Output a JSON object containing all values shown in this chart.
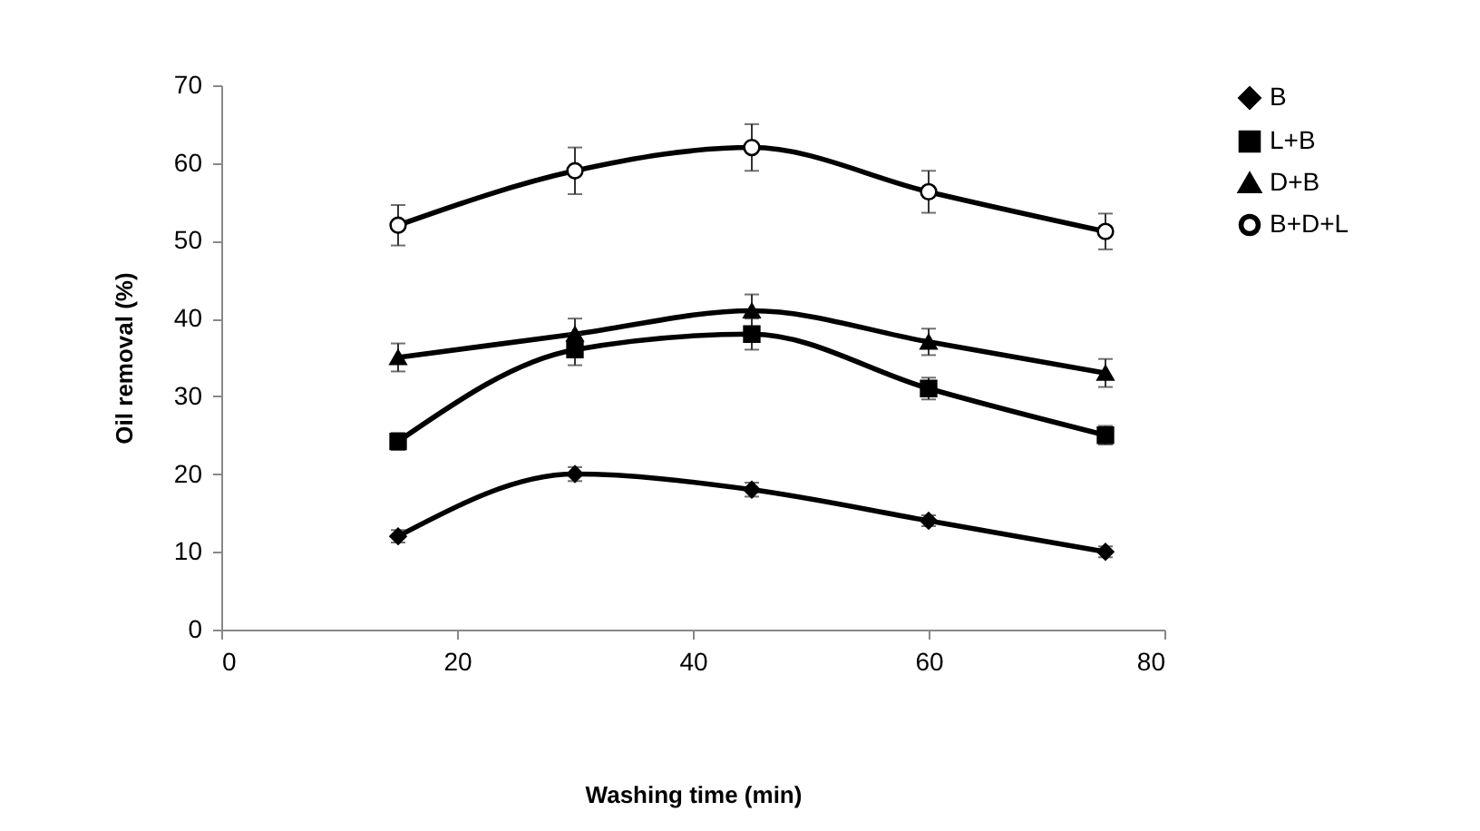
{
  "chart_data": {
    "type": "line",
    "xlabel": "Washing time (min)",
    "ylabel": "Oil removal (%)",
    "x": [
      15,
      30,
      45,
      60,
      75
    ],
    "xlim": [
      0,
      80
    ],
    "xticks": [
      0,
      20,
      40,
      60,
      80
    ],
    "ylim": [
      0,
      70
    ],
    "yticks": [
      0,
      10,
      20,
      30,
      40,
      50,
      60,
      70
    ],
    "grid": false,
    "legend": "right",
    "series": [
      {
        "name": "B",
        "color": "#000000",
        "marker": "diamond",
        "values": [
          12,
          20,
          18,
          14,
          10
        ],
        "errors": [
          0.8,
          0.9,
          0.9,
          0.7,
          0.7
        ]
      },
      {
        "name": "L+B",
        "color": "#000000",
        "marker": "square",
        "values": [
          24.2,
          36,
          38,
          31,
          25
        ],
        "errors": [
          1.1,
          2,
          2,
          1.4,
          1.2
        ]
      },
      {
        "name": "D+B",
        "color": "#000000",
        "marker": "triangle",
        "values": [
          35,
          38,
          41,
          37,
          33
        ],
        "errors": [
          1.8,
          2,
          2.1,
          1.7,
          1.8
        ]
      },
      {
        "name": "B+D+L",
        "color": "#000000",
        "marker": "circle",
        "values": [
          52,
          59,
          62,
          56.3,
          51.2
        ],
        "errors": [
          2.6,
          3,
          3,
          2.7,
          2.3
        ]
      }
    ]
  }
}
